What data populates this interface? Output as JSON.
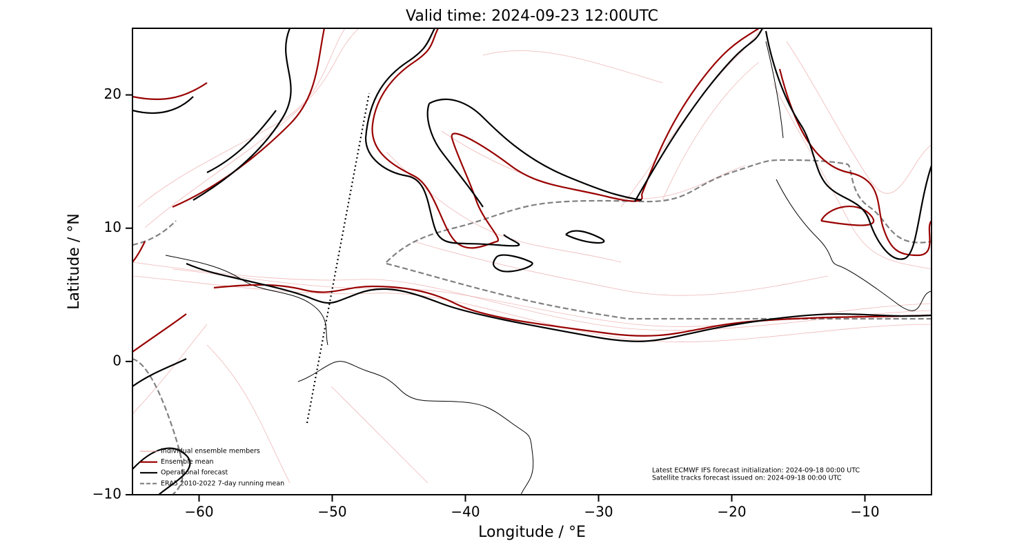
{
  "chart_data": {
    "type": "map",
    "title": "Valid time: 2024-09-23 12:00UTC",
    "xlabel": "Longitude / °E",
    "ylabel": "Latitude / °N",
    "xlim": [
      -65,
      -5
    ],
    "ylim": [
      -10,
      25
    ],
    "xticks": [
      {
        "value": -60,
        "label": "−60"
      },
      {
        "value": -50,
        "label": "−50"
      },
      {
        "value": -40,
        "label": "−40"
      },
      {
        "value": -30,
        "label": "−30"
      },
      {
        "value": -20,
        "label": "−20"
      },
      {
        "value": -10,
        "label": "−10"
      }
    ],
    "yticks": [
      {
        "value": -10,
        "label": "−10"
      },
      0,
      10,
      20
    ],
    "legend_position": "lower left",
    "series": [
      {
        "name": "Individual ensemble members",
        "color": "#e89a9a",
        "linestyle": "solid"
      },
      {
        "name": "Ensemble mean",
        "color": "#990000",
        "linestyle": "solid"
      },
      {
        "name": "Operational forecast",
        "color": "#000000",
        "linestyle": "solid"
      },
      {
        "name": "ERA5 2010-2022 7-day running mean",
        "color": "#808080",
        "linestyle": "dashed"
      }
    ],
    "notes": [
      "Latest ECMWF IFS forecast initialization: 2024-09-18 00:00 UTC",
      "Satellite tracks forecast issued on: 2024-09-18 00:00 UTC"
    ]
  }
}
